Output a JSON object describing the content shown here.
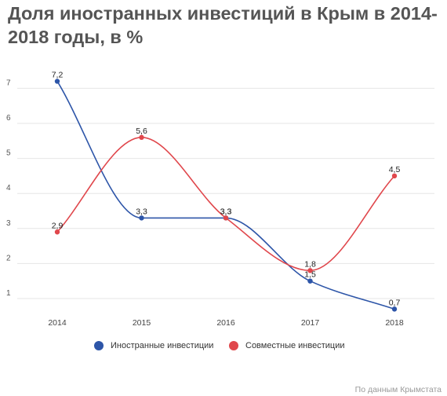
{
  "title": "Доля иностранных инвестиций в Крым в 2014-2018 годы, в %",
  "source": "По данным Крымстата",
  "chart_data": {
    "type": "line",
    "title": "Доля иностранных инвестиций в Крым в 2014-2018 годы, в %",
    "xlabel": "",
    "ylabel": "",
    "categories": [
      "2014",
      "2015",
      "2016",
      "2017",
      "2018"
    ],
    "yticks": [
      "1",
      "2",
      "3",
      "4",
      "5",
      "6",
      "7"
    ],
    "ylim": [
      0.5,
      7.8
    ],
    "grid": true,
    "smooth": true,
    "legend_position": "bottom-center",
    "series": [
      {
        "name": "Иностранные инвестиции",
        "color": "#2d55a8",
        "values": [
          7.2,
          3.3,
          3.3,
          1.5,
          0.7
        ],
        "labels": [
          "7,2",
          "3,3",
          "3,3",
          "1,5",
          "0,7"
        ]
      },
      {
        "name": "Совместные инвестиции",
        "color": "#e0474c",
        "values": [
          2.9,
          5.6,
          3.3,
          1.8,
          4.5
        ],
        "labels": [
          "2,9",
          "5,6",
          "3,3",
          "1,8",
          "4,5"
        ]
      }
    ]
  }
}
